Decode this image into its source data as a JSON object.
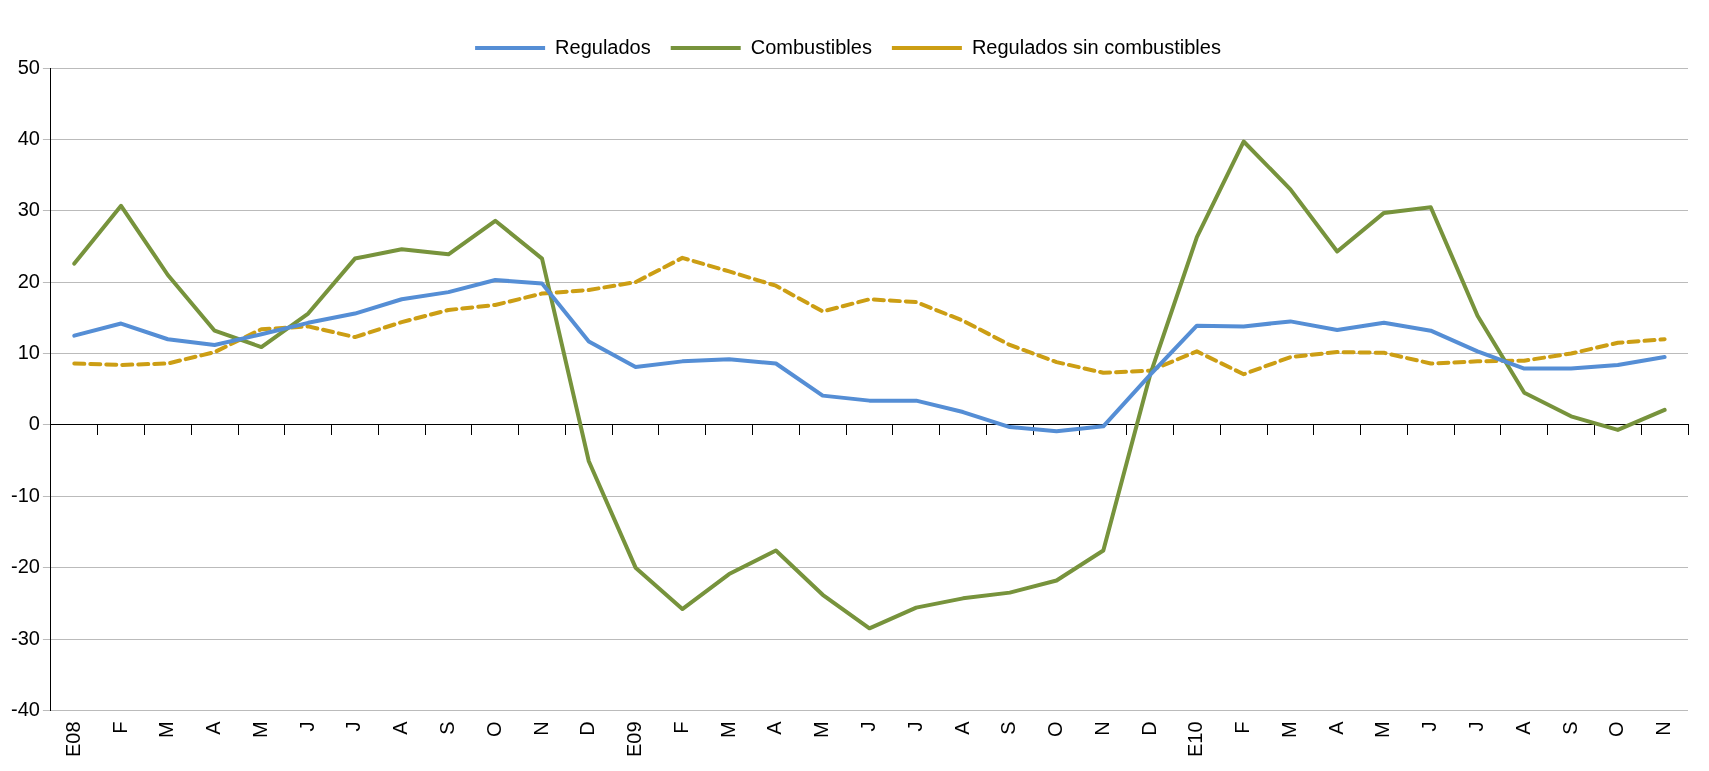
{
  "chart_data": {
    "type": "line",
    "categories": [
      "E08",
      "F",
      "M",
      "A",
      "M",
      "J",
      "J",
      "A",
      "S",
      "O",
      "N",
      "D",
      "E09",
      "F",
      "M",
      "A",
      "M",
      "J",
      "J",
      "A",
      "S",
      "O",
      "N",
      "D",
      "E10",
      "F",
      "M",
      "A",
      "M",
      "J",
      "J",
      "A",
      "S",
      "O",
      "N"
    ],
    "series": [
      {
        "name": "Regulados",
        "color": "#558ed5",
        "line_style": "solid",
        "values": [
          12.5,
          14.2,
          12,
          11.2,
          12.7,
          14.3,
          15.6,
          17.6,
          18.6,
          20.3,
          19.8,
          11.7,
          8.1,
          8.9,
          9.2,
          8.6,
          4.1,
          3.4,
          3.4,
          1.8,
          -0.3,
          -0.9,
          -0.2,
          7,
          13.9,
          13.8,
          14.5,
          13.3,
          14.3,
          13.2,
          10.3,
          7.9,
          7.9,
          8.4,
          9.5
        ]
      },
      {
        "name": "Combustibles",
        "color": "#77933c",
        "line_style": "solid",
        "values": [
          22.6,
          30.7,
          21,
          13.2,
          10.9,
          15.6,
          23.3,
          24.6,
          23.9,
          28.6,
          23.3,
          -5.1,
          -20,
          -25.8,
          -20.9,
          -17.6,
          -23.8,
          -28.5,
          -25.6,
          -24.3,
          -23.5,
          -21.8,
          -17.6,
          7,
          26.3,
          39.7,
          33,
          24.3,
          29.7,
          30.5,
          15.3,
          4.5,
          1.2,
          -0.7,
          2.1
        ]
      },
      {
        "name": "Regulados sin combustibles",
        "color": "#cc9e14",
        "line_style": "dashed",
        "values": [
          8.6,
          8.4,
          8.6,
          10.2,
          13.4,
          13.8,
          12.3,
          14.4,
          16.1,
          16.8,
          18.4,
          18.9,
          20,
          23.4,
          21.5,
          19.5,
          15.9,
          17.6,
          17.2,
          14.6,
          11.2,
          8.8,
          7.3,
          7.6,
          10.3,
          7.1,
          9.5,
          10.2,
          10.1,
          8.6,
          8.9,
          9,
          10,
          11.5,
          12
        ]
      }
    ],
    "ylim": [
      -40,
      50
    ],
    "yticks": [
      -40,
      -30,
      -20,
      -10,
      0,
      10,
      20,
      30,
      40,
      50
    ],
    "grid": "y",
    "legend": "top",
    "marker": "none"
  }
}
